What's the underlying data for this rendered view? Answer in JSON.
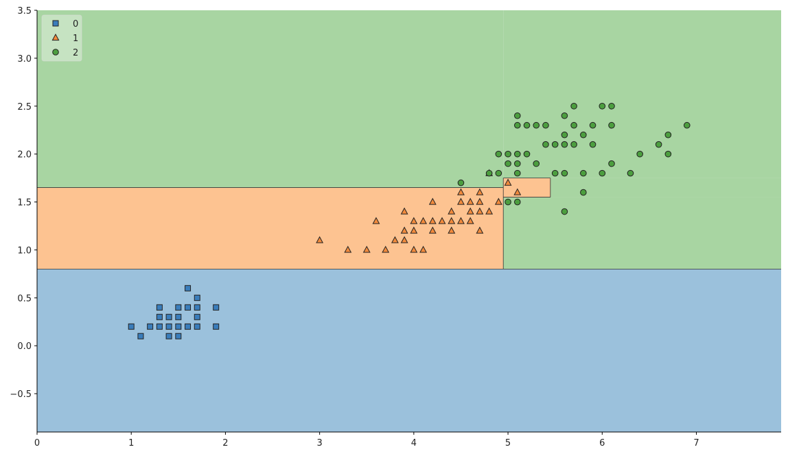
{
  "chart_data": {
    "type": "scatter",
    "title": "",
    "xlabel": "",
    "ylabel": "",
    "xlim": [
      0,
      7.9
    ],
    "ylim": [
      -0.9,
      3.5
    ],
    "xticks": [
      0,
      1,
      2,
      3,
      4,
      5,
      6,
      7
    ],
    "yticks": [
      -0.5,
      0.0,
      0.5,
      1.0,
      1.5,
      2.0,
      2.5,
      3.0,
      3.5
    ],
    "ytick_labels": [
      "−0.5",
      "0.0",
      "0.5",
      "1.0",
      "1.5",
      "2.0",
      "2.5",
      "3.0",
      "3.5"
    ],
    "grid": false,
    "legend_position": "top-left",
    "decision_regions": [
      {
        "class": "0",
        "x": [
          0,
          7.9
        ],
        "y": [
          -0.9,
          0.8
        ]
      },
      {
        "class": "1",
        "x": [
          0,
          4.95
        ],
        "y": [
          0.8,
          1.65
        ]
      },
      {
        "class": "1",
        "x": [
          4.95,
          5.45
        ],
        "y": [
          1.55,
          1.75
        ]
      },
      {
        "class": "2",
        "x": [
          4.95,
          7.9
        ],
        "y": [
          0.8,
          1.55
        ]
      },
      {
        "class": "2",
        "x": [
          5.45,
          7.9
        ],
        "y": [
          1.55,
          1.75
        ]
      },
      {
        "class": "2",
        "x": [
          0,
          4.95
        ],
        "y": [
          1.65,
          3.5
        ]
      },
      {
        "class": "2",
        "x": [
          4.95,
          7.9
        ],
        "y": [
          1.75,
          3.5
        ]
      }
    ],
    "series": [
      {
        "name": "0",
        "marker": "square",
        "color": "#3a7dbb",
        "region_color": "#9bc1dc",
        "points": [
          [
            1.0,
            0.2
          ],
          [
            1.1,
            0.1
          ],
          [
            1.2,
            0.2
          ],
          [
            1.3,
            0.2
          ],
          [
            1.3,
            0.3
          ],
          [
            1.3,
            0.4
          ],
          [
            1.4,
            0.1
          ],
          [
            1.4,
            0.2
          ],
          [
            1.4,
            0.3
          ],
          [
            1.5,
            0.1
          ],
          [
            1.5,
            0.2
          ],
          [
            1.5,
            0.3
          ],
          [
            1.5,
            0.4
          ],
          [
            1.6,
            0.2
          ],
          [
            1.6,
            0.4
          ],
          [
            1.6,
            0.6
          ],
          [
            1.7,
            0.2
          ],
          [
            1.7,
            0.3
          ],
          [
            1.7,
            0.4
          ],
          [
            1.7,
            0.5
          ],
          [
            1.9,
            0.2
          ],
          [
            1.9,
            0.4
          ]
        ]
      },
      {
        "name": "1",
        "marker": "triangle",
        "color": "#f28a3c",
        "region_color": "#fdc391",
        "points": [
          [
            3.0,
            1.1
          ],
          [
            3.3,
            1.0
          ],
          [
            3.5,
            1.0
          ],
          [
            3.6,
            1.3
          ],
          [
            3.7,
            1.0
          ],
          [
            3.8,
            1.1
          ],
          [
            3.9,
            1.1
          ],
          [
            3.9,
            1.2
          ],
          [
            3.9,
            1.4
          ],
          [
            4.0,
            1.0
          ],
          [
            4.0,
            1.2
          ],
          [
            4.0,
            1.3
          ],
          [
            4.1,
            1.0
          ],
          [
            4.1,
            1.3
          ],
          [
            4.2,
            1.2
          ],
          [
            4.2,
            1.3
          ],
          [
            4.2,
            1.5
          ],
          [
            4.3,
            1.3
          ],
          [
            4.4,
            1.2
          ],
          [
            4.4,
            1.3
          ],
          [
            4.4,
            1.4
          ],
          [
            4.5,
            1.3
          ],
          [
            4.5,
            1.5
          ],
          [
            4.5,
            1.6
          ],
          [
            4.6,
            1.3
          ],
          [
            4.6,
            1.4
          ],
          [
            4.6,
            1.5
          ],
          [
            4.7,
            1.2
          ],
          [
            4.7,
            1.4
          ],
          [
            4.7,
            1.5
          ],
          [
            4.7,
            1.6
          ],
          [
            4.8,
            1.4
          ],
          [
            4.8,
            1.8
          ],
          [
            4.9,
            1.5
          ],
          [
            5.0,
            1.7
          ],
          [
            5.1,
            1.6
          ]
        ]
      },
      {
        "name": "2",
        "marker": "circle",
        "color": "#4c9e3f",
        "region_color": "#a8d5a2",
        "points": [
          [
            4.5,
            1.7
          ],
          [
            4.8,
            1.8
          ],
          [
            4.9,
            1.8
          ],
          [
            4.9,
            2.0
          ],
          [
            5.0,
            1.5
          ],
          [
            5.0,
            1.9
          ],
          [
            5.0,
            2.0
          ],
          [
            5.1,
            1.5
          ],
          [
            5.1,
            1.8
          ],
          [
            5.1,
            1.9
          ],
          [
            5.1,
            2.0
          ],
          [
            5.1,
            2.3
          ],
          [
            5.1,
            2.4
          ],
          [
            5.2,
            2.0
          ],
          [
            5.2,
            2.3
          ],
          [
            5.3,
            1.9
          ],
          [
            5.3,
            2.3
          ],
          [
            5.4,
            2.1
          ],
          [
            5.4,
            2.3
          ],
          [
            5.5,
            1.8
          ],
          [
            5.5,
            2.1
          ],
          [
            5.6,
            1.4
          ],
          [
            5.6,
            1.8
          ],
          [
            5.6,
            2.1
          ],
          [
            5.6,
            2.2
          ],
          [
            5.6,
            2.4
          ],
          [
            5.7,
            2.1
          ],
          [
            5.7,
            2.3
          ],
          [
            5.7,
            2.5
          ],
          [
            5.8,
            1.6
          ],
          [
            5.8,
            1.8
          ],
          [
            5.8,
            2.2
          ],
          [
            5.9,
            2.1
          ],
          [
            5.9,
            2.3
          ],
          [
            6.0,
            1.8
          ],
          [
            6.0,
            2.5
          ],
          [
            6.1,
            1.9
          ],
          [
            6.1,
            2.3
          ],
          [
            6.1,
            2.5
          ],
          [
            6.3,
            1.8
          ],
          [
            6.4,
            2.0
          ],
          [
            6.6,
            2.1
          ],
          [
            6.7,
            2.0
          ],
          [
            6.7,
            2.2
          ],
          [
            6.9,
            2.3
          ]
        ]
      }
    ]
  }
}
